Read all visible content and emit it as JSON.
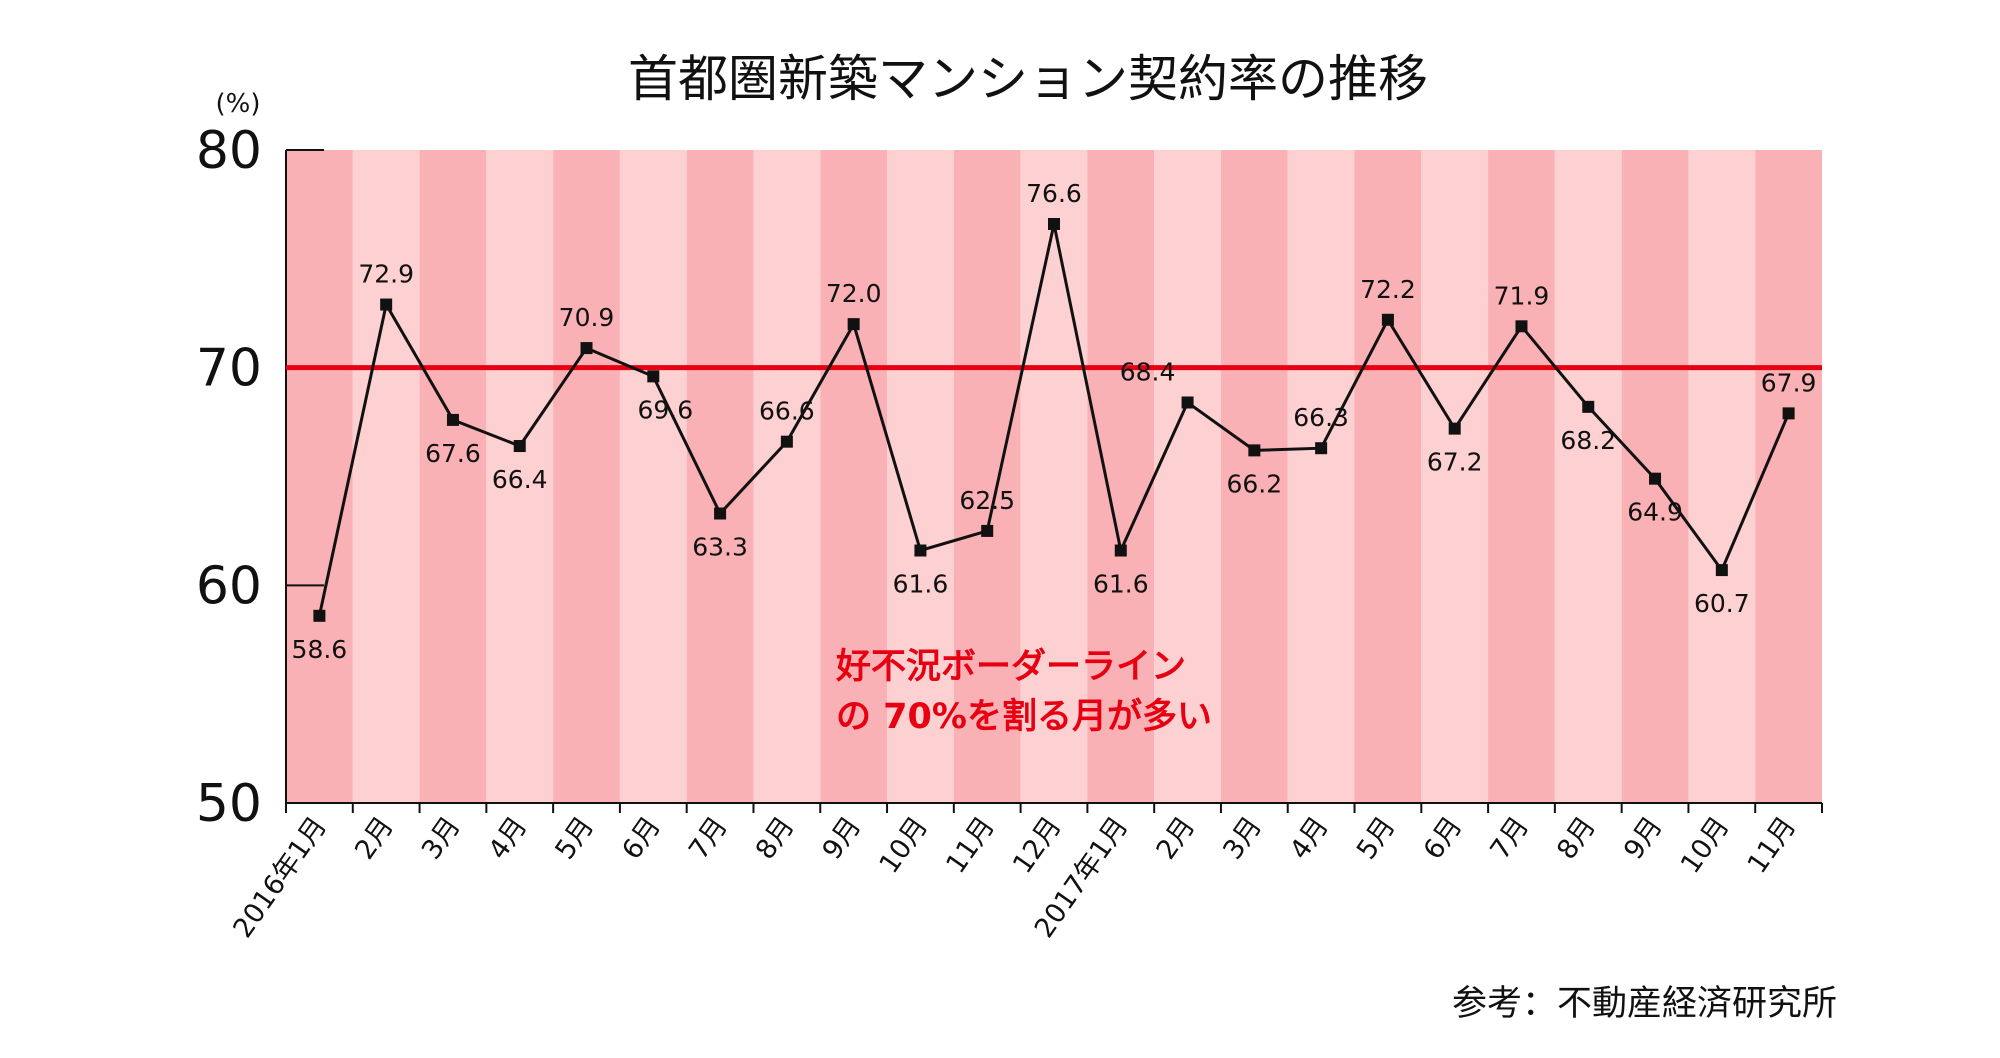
{
  "chart_data": {
    "type": "line",
    "title": "首都圏新築マンション契約率の推移",
    "ylabel": "(%)",
    "ylim": [
      50,
      80
    ],
    "yticks": [
      50,
      60,
      70,
      80
    ],
    "categories": [
      "2016年1月",
      "2月",
      "3月",
      "4月",
      "5月",
      "6月",
      "7月",
      "8月",
      "9月",
      "10月",
      "11月",
      "12月",
      "2017年1月",
      "2月",
      "3月",
      "4月",
      "5月",
      "6月",
      "7月",
      "8月",
      "9月",
      "10月",
      "11月"
    ],
    "values": [
      58.6,
      72.9,
      67.6,
      66.4,
      70.9,
      69.6,
      63.3,
      66.6,
      72.0,
      61.6,
      62.5,
      76.6,
      61.6,
      68.4,
      66.2,
      66.3,
      72.2,
      67.2,
      71.9,
      68.2,
      64.9,
      60.7,
      67.9
    ],
    "data_labels": [
      "58.6",
      "72.9",
      "67.6",
      "66.4",
      "70.9",
      "69.6",
      "63.3",
      "66.6",
      "72.0",
      "61.6",
      "62.5",
      "76.6",
      "61.6",
      "68.4",
      "66.2",
      "66.3",
      "72.2",
      "67.2",
      "71.9",
      "68.2",
      "64.9",
      "60.7",
      "67.9"
    ],
    "reference_line": 70,
    "annotation": [
      "好不況ボーダーライン",
      "の 70%を割る月が多い"
    ],
    "source": "参考：不動産経済研究所",
    "grid": false,
    "legend": "none",
    "colors": {
      "line": "#111111",
      "marker": "#111111",
      "reference_line": "#e60012",
      "band_dark": "#f9b1b5",
      "band_light": "#fdd0d2",
      "annotation": "#e60012"
    }
  }
}
